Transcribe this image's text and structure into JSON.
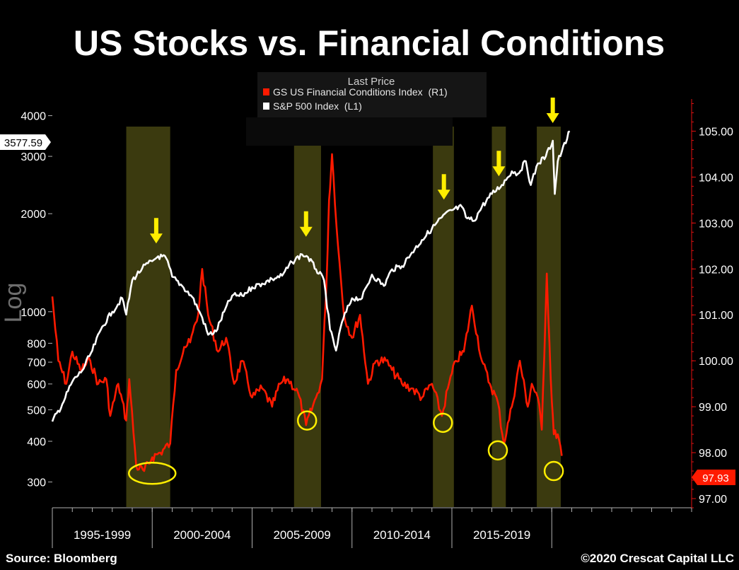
{
  "chart_data": {
    "type": "line",
    "title": "US Stocks vs. Financial Conditions",
    "legend": {
      "header": "Last Price",
      "placement": "top-center",
      "entries": [
        {
          "label": "GS US Financial Conditions Index  (R1)",
          "color": "#ff1a00"
        },
        {
          "label": "S&P 500 Index  (L1)",
          "color": "#ffffff"
        }
      ]
    },
    "y_left": {
      "label": "Log",
      "scale": "log",
      "range": [
        250,
        4500
      ],
      "ticks": [
        300,
        400,
        500,
        600,
        700,
        800,
        1000,
        2000,
        3000,
        4000
      ],
      "last_value_label": "3577.59"
    },
    "y_right": {
      "range": [
        96.8,
        105.7
      ],
      "ticks": [
        "97.00",
        "98.00",
        "99.00",
        "100.00",
        "101.00",
        "102.00",
        "103.00",
        "104.00",
        "105.00"
      ],
      "last_value_label": "97.93"
    },
    "x_axis": {
      "range": [
        1995.0,
        2027.0
      ],
      "period_labels": [
        {
          "label": "1995-1999",
          "center": 1997.5
        },
        {
          "label": "2000-2004",
          "center": 2002.5
        },
        {
          "label": "2005-2009",
          "center": 2007.5
        },
        {
          "label": "2010-2014",
          "center": 2012.5
        },
        {
          "label": "2015-2019",
          "center": 2017.5
        }
      ],
      "separators": [
        2000,
        2005,
        2010,
        2015,
        2020
      ]
    },
    "shaded_periods": [
      [
        1998.7,
        2000.9
      ],
      [
        2007.1,
        2008.45
      ],
      [
        2014.05,
        2015.1
      ],
      [
        2017.0,
        2017.7
      ],
      [
        2019.25,
        2020.45
      ]
    ],
    "arrows": [
      2000.2,
      2007.7,
      2014.6,
      2017.35,
      2020.05
    ],
    "circles": [
      {
        "x": 2000.0,
        "y": 97.55,
        "wide": true
      },
      {
        "x": 2007.75,
        "y": 98.7,
        "wide": false
      },
      {
        "x": 2014.55,
        "y": 98.65,
        "wide": false
      },
      {
        "x": 2017.3,
        "y": 98.05,
        "wide": false
      },
      {
        "x": 2020.1,
        "y": 97.6,
        "wide": false
      }
    ],
    "series": [
      {
        "name": "S&P 500 Index",
        "axis": "left",
        "color": "#ffffff",
        "x": [
          1995.0,
          1995.5,
          1996.0,
          1996.5,
          1997.0,
          1997.5,
          1998.0,
          1998.5,
          1998.7,
          1999.0,
          1999.5,
          2000.0,
          2000.3,
          2000.7,
          2001.0,
          2001.5,
          2002.0,
          2002.5,
          2002.8,
          2003.2,
          2003.6,
          2004.0,
          2004.5,
          2005.0,
          2005.5,
          2006.0,
          2006.5,
          2007.0,
          2007.5,
          2007.8,
          2008.2,
          2008.6,
          2008.9,
          2009.2,
          2009.5,
          2010.0,
          2010.5,
          2011.0,
          2011.6,
          2012.0,
          2012.5,
          2013.0,
          2013.5,
          2014.0,
          2014.5,
          2015.0,
          2015.5,
          2015.7,
          2016.1,
          2016.5,
          2017.0,
          2017.5,
          2018.0,
          2018.3,
          2018.7,
          2018.95,
          2019.3,
          2019.7,
          2020.05,
          2020.15,
          2020.3,
          2020.5,
          2020.9
        ],
        "values": [
          460,
          520,
          610,
          660,
          760,
          900,
          1000,
          1100,
          980,
          1250,
          1360,
          1430,
          1480,
          1460,
          1280,
          1200,
          1110,
          960,
          850,
          870,
          1000,
          1120,
          1120,
          1190,
          1220,
          1260,
          1290,
          1420,
          1500,
          1470,
          1350,
          1250,
          880,
          760,
          930,
          1100,
          1100,
          1300,
          1200,
          1350,
          1380,
          1520,
          1660,
          1800,
          1950,
          2050,
          2100,
          1950,
          1900,
          2100,
          2300,
          2450,
          2700,
          2650,
          2900,
          2450,
          2850,
          3000,
          3350,
          2300,
          2900,
          3100,
          3580
        ]
      },
      {
        "name": "GS US Financial Conditions Index",
        "axis": "right",
        "color": "#ff1a00",
        "x": [
          1995.0,
          1995.3,
          1995.7,
          1996.0,
          1996.4,
          1996.9,
          1997.3,
          1997.7,
          1997.9,
          1998.3,
          1998.7,
          1998.85,
          1999.2,
          1999.6,
          2000.0,
          2000.4,
          2000.9,
          2001.2,
          2001.6,
          2001.9,
          2002.3,
          2002.5,
          2002.8,
          2003.3,
          2003.7,
          2004.1,
          2004.5,
          2005.0,
          2005.5,
          2006.0,
          2006.4,
          2006.8,
          2007.3,
          2007.7,
          2008.2,
          2008.5,
          2008.75,
          2008.85,
          2009.0,
          2009.3,
          2009.6,
          2010.0,
          2010.4,
          2010.8,
          2011.2,
          2011.7,
          2012.0,
          2012.5,
          2013.0,
          2013.5,
          2014.0,
          2014.5,
          2014.8,
          2015.2,
          2015.6,
          2016.0,
          2016.5,
          2016.9,
          2017.3,
          2017.6,
          2018.0,
          2018.4,
          2018.8,
          2019.0,
          2019.3,
          2019.5,
          2019.75,
          2019.95,
          2020.1,
          2020.3,
          2020.5
        ],
        "values": [
          101.4,
          100.0,
          99.5,
          100.2,
          99.8,
          100.0,
          99.5,
          99.6,
          98.8,
          99.5,
          98.7,
          99.6,
          97.7,
          97.6,
          97.9,
          98.0,
          98.2,
          99.8,
          100.3,
          100.4,
          101.0,
          102.0,
          101.0,
          100.2,
          100.5,
          99.5,
          100.0,
          99.2,
          99.4,
          99.0,
          99.5,
          99.6,
          99.3,
          98.6,
          99.2,
          99.6,
          102.0,
          103.5,
          104.5,
          102.5,
          101.0,
          100.5,
          101.0,
          99.5,
          100.0,
          100.0,
          99.8,
          99.5,
          99.4,
          99.2,
          99.5,
          98.8,
          99.4,
          100.0,
          100.2,
          101.2,
          100.0,
          99.5,
          99.1,
          98.2,
          99.0,
          100.0,
          99.0,
          99.5,
          99.2,
          98.5,
          101.9,
          99.6,
          98.4,
          98.4,
          97.93
        ]
      }
    ]
  },
  "footer": {
    "source": "Source: Bloomberg",
    "copyright": "©2020 Crescat Capital LLC"
  }
}
